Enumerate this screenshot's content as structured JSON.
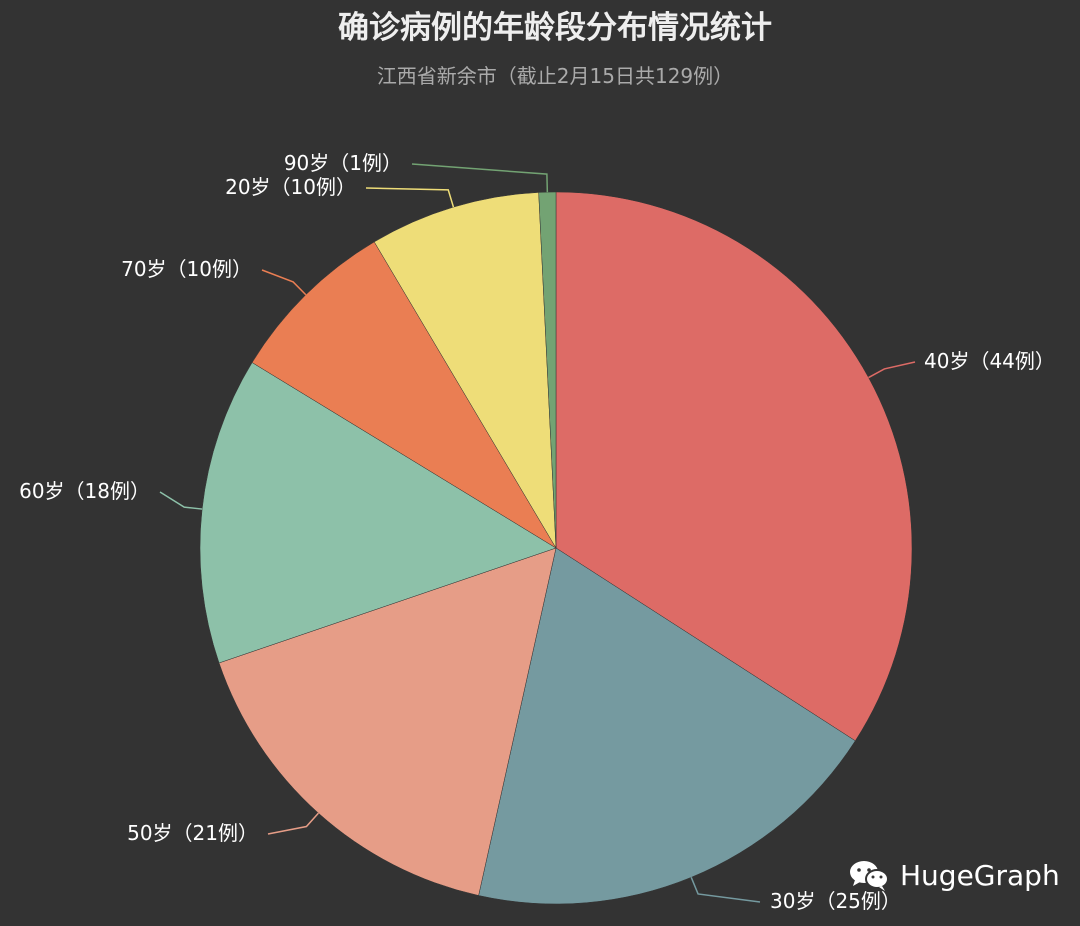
{
  "chart_data": {
    "type": "pie",
    "title": "确诊病例的年龄段分布情况统计",
    "subtitle": "江西省新余市（截止2月15日共129例）",
    "total": 129,
    "slices": [
      {
        "label": "40岁（44例）",
        "value": 44,
        "color": "#dd6b66"
      },
      {
        "label": "30岁（25例）",
        "value": 25,
        "color": "#759aa0"
      },
      {
        "label": "50岁（21例）",
        "value": 21,
        "color": "#e69d87"
      },
      {
        "label": "60岁（18例）",
        "value": 18,
        "color": "#8dc1a9"
      },
      {
        "label": "70岁（10例）",
        "value": 10,
        "color": "#ea7e53"
      },
      {
        "label": "20岁（10例）",
        "value": 10,
        "color": "#eedd78"
      },
      {
        "label": "90岁（1例）",
        "value": 1,
        "color": "#73a373"
      }
    ]
  },
  "watermark": {
    "text": "HugeGraph",
    "icon": "wechat-icon"
  }
}
